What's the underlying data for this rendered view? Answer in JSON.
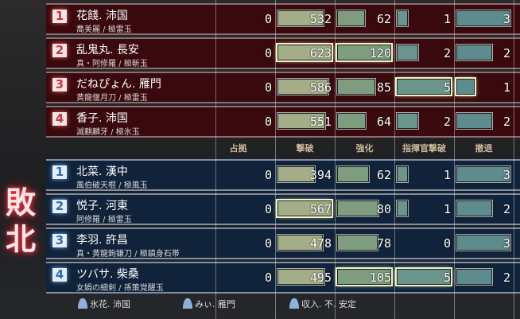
{
  "result": "敗北",
  "headers": [
    "占拠",
    "撃破",
    "強化",
    "指揮官撃破",
    "撤退"
  ],
  "colors": {
    "kills": "#a3ad88",
    "boost": "#7e9d7f",
    "cmd": "#6b958c",
    "retreat": "#5d8b8e"
  },
  "red_team": [
    {
      "rank": "1",
      "name": "花餞. 沛国",
      "gear": "喬美麗 / 極雷玉",
      "stats": [
        0,
        532,
        62,
        1,
        3
      ],
      "highlight": [
        false,
        false,
        false,
        false,
        false
      ]
    },
    {
      "rank": "2",
      "name": "乱鬼丸. 長安",
      "gear": "真・阿修羅 / 極斬玉",
      "stats": [
        0,
        623,
        120,
        2,
        2
      ],
      "highlight": [
        false,
        true,
        true,
        false,
        false
      ]
    },
    {
      "rank": "3",
      "name": "だねぴょん. 雁門",
      "gear": "黄龍偃月刀 / 極雷玉",
      "stats": [
        0,
        586,
        85,
        5,
        1
      ],
      "highlight": [
        false,
        false,
        false,
        true,
        true
      ]
    },
    {
      "rank": "4",
      "name": "香子. 沛国",
      "gear": "滅麒麟牙 / 極氷玉",
      "stats": [
        0,
        551,
        64,
        2,
        2
      ],
      "highlight": [
        false,
        false,
        false,
        false,
        false
      ]
    }
  ],
  "blue_team": [
    {
      "rank": "1",
      "name": "北菜. 漢中",
      "gear": "風伯破天棍 / 極風玉",
      "stats": [
        0,
        394,
        62,
        1,
        3
      ],
      "highlight": [
        false,
        false,
        false,
        false,
        false
      ]
    },
    {
      "rank": "2",
      "name": "悦子. 河東",
      "gear": "阿修羅 / 極雷玉",
      "stats": [
        0,
        567,
        80,
        1,
        2
      ],
      "highlight": [
        false,
        true,
        false,
        false,
        false
      ]
    },
    {
      "rank": "3",
      "name": "李羽. 許昌",
      "gear": "真・黄龍鉤鎌刀 / 極鎮身石帯",
      "stats": [
        0,
        478,
        78,
        0,
        3
      ],
      "highlight": [
        false,
        false,
        false,
        false,
        false
      ]
    },
    {
      "rank": "4",
      "name": "ツバサ. 柴桑",
      "gear": "女媧の細剣 / 孫策覚醒玉",
      "stats": [
        0,
        495,
        105,
        5,
        2
      ],
      "highlight": [
        false,
        false,
        true,
        true,
        false
      ]
    }
  ],
  "footer": {
    "spectators": [
      "氷花. 沛国",
      "みぃ. 雁門",
      "収入. 不. 安定"
    ]
  }
}
